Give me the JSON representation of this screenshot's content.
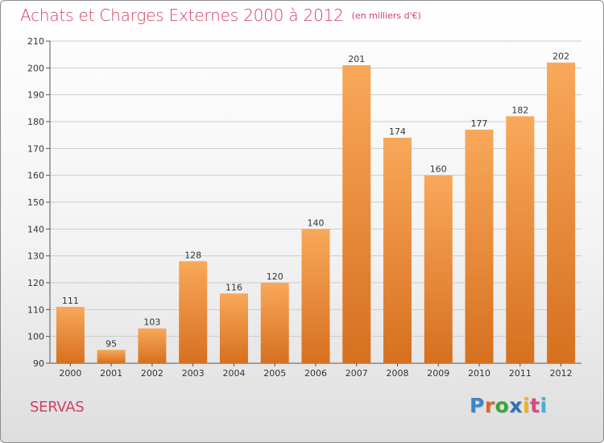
{
  "title": "Achats et Charges Externes 2000 à 2012",
  "unit_note": "(en milliers d'€)",
  "place_name": "SERVAS",
  "logo": {
    "text": "Proxiti",
    "letter_colors": [
      "#3a86c8",
      "#e2632e",
      "#3aa53a",
      "#2f6fb8",
      "#e8b420",
      "#d94a7e",
      "#45b0d8"
    ]
  },
  "colors": {
    "bar_light": "#f9a85a",
    "bar_dark": "#d6701f",
    "accent_text": "#d4415f",
    "grid": "#cccccc"
  },
  "chart_data": {
    "type": "bar",
    "categories": [
      "2000",
      "2001",
      "2002",
      "2003",
      "2004",
      "2005",
      "2006",
      "2007",
      "2008",
      "2009",
      "2010",
      "2011",
      "2012"
    ],
    "values": [
      111,
      95,
      103,
      128,
      116,
      120,
      140,
      201,
      174,
      160,
      177,
      182,
      202
    ],
    "title": "Achats et Charges Externes 2000 à 2012",
    "xlabel": "",
    "ylabel": "",
    "ylim": [
      90,
      210
    ],
    "yticks": [
      90,
      100,
      110,
      120,
      130,
      140,
      150,
      160,
      170,
      180,
      190,
      200,
      210
    ],
    "grid": true,
    "legend": "none",
    "data_labels": true
  }
}
